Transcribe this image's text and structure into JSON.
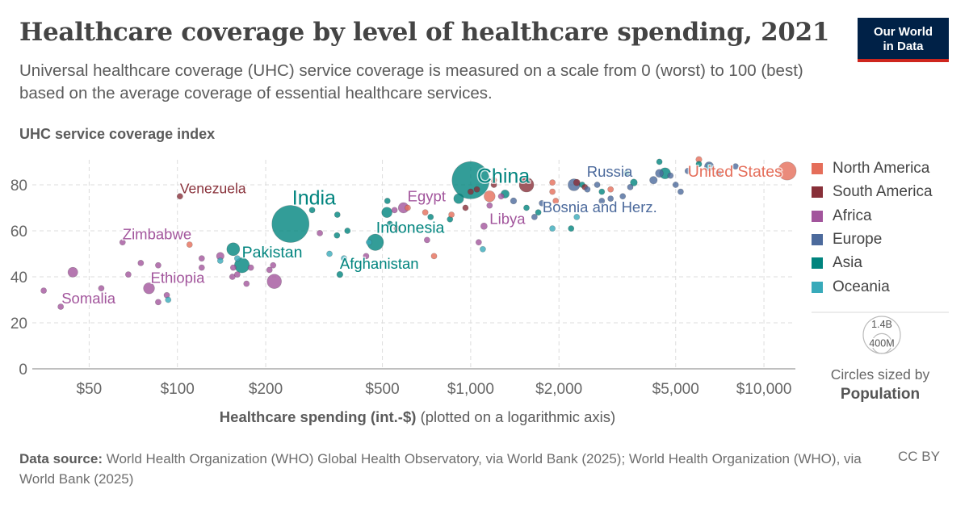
{
  "header": {
    "title": "Healthcare coverage by level of healthcare spending, 2021",
    "subtitle": "Universal healthcare coverage (UHC) service coverage is measured on a scale from 0 (worst) to 100 (best) based on the average coverage of essential healthcare services.",
    "logo_line1": "Our World",
    "logo_line2": "in Data"
  },
  "footer": {
    "source_label": "Data source:",
    "source_text": "World Health Organization (WHO) Global Health Observatory, via World Bank (2025); World Health Organization (WHO), via World Bank (2025)",
    "license": "CC BY"
  },
  "colors": {
    "North America": "#E56E5A",
    "South America": "#883039",
    "Africa": "#A2559C",
    "Europe": "#4C6A9C",
    "Asia": "#00847E",
    "Oceania": "#38AABA"
  },
  "chart_data": {
    "type": "scatter",
    "title": "Healthcare coverage by level of healthcare spending, 2021",
    "ylabel": "UHC service coverage index",
    "xlabel": "Healthcare spending (int.-$)",
    "xlabel_note": "(plotted on a logarithmic axis)",
    "x_scale": "log",
    "xlim": [
      32,
      12800
    ],
    "ylim": [
      0,
      90
    ],
    "grid": true,
    "x_ticks": [
      50,
      100,
      200,
      500,
      1000,
      2000,
      5000,
      10000
    ],
    "x_tick_labels": [
      "$50",
      "$100",
      "$200",
      "$500",
      "$1,000",
      "$2,000",
      "$5,000",
      "$10,000"
    ],
    "y_ticks": [
      0,
      20,
      40,
      60,
      80
    ],
    "y_tick_labels": [
      "0",
      "20",
      "40",
      "60",
      "80"
    ],
    "legend_position": "right",
    "legend": [
      "North America",
      "South America",
      "Africa",
      "Europe",
      "Asia",
      "Oceania"
    ],
    "size_legend": {
      "title": "Circles sized by",
      "variable": "Population",
      "values": [
        "1.4B",
        "400M"
      ]
    },
    "points": [
      {
        "x": 35,
        "y": 34,
        "region": "Africa",
        "pop": 20
      },
      {
        "x": 40,
        "y": 27,
        "region": "Africa",
        "pop": 18,
        "label": "Somalia"
      },
      {
        "x": 44,
        "y": 42,
        "region": "Africa",
        "pop": 100
      },
      {
        "x": 55,
        "y": 35,
        "region": "Africa",
        "pop": 12
      },
      {
        "x": 65,
        "y": 55,
        "region": "Africa",
        "pop": 16,
        "label": "Zimbabwe"
      },
      {
        "x": 68,
        "y": 41,
        "region": "Africa",
        "pop": 20
      },
      {
        "x": 75,
        "y": 46,
        "region": "Africa",
        "pop": 20
      },
      {
        "x": 86,
        "y": 45,
        "region": "Africa",
        "pop": 20
      },
      {
        "x": 80,
        "y": 35,
        "region": "Africa",
        "pop": 125,
        "label": "Ethiopia"
      },
      {
        "x": 86,
        "y": 29,
        "region": "Africa",
        "pop": 15
      },
      {
        "x": 92,
        "y": 32,
        "region": "Africa",
        "pop": 15
      },
      {
        "x": 121,
        "y": 44,
        "region": "Africa",
        "pop": 20
      },
      {
        "x": 121,
        "y": 48,
        "region": "Africa",
        "pop": 30
      },
      {
        "x": 140,
        "y": 49,
        "region": "Africa",
        "pop": 60
      },
      {
        "x": 154,
        "y": 40,
        "region": "Africa",
        "pop": 20
      },
      {
        "x": 160,
        "y": 41,
        "region": "Africa",
        "pop": 20
      },
      {
        "x": 155,
        "y": 44,
        "region": "Africa",
        "pop": 25
      },
      {
        "x": 172,
        "y": 37,
        "region": "Africa",
        "pop": 18
      },
      {
        "x": 178,
        "y": 44,
        "region": "Africa",
        "pop": 20
      },
      {
        "x": 214,
        "y": 38,
        "region": "Africa",
        "pop": 210
      },
      {
        "x": 206,
        "y": 43,
        "region": "Africa",
        "pop": 20
      },
      {
        "x": 212,
        "y": 45,
        "region": "Africa",
        "pop": 20
      },
      {
        "x": 306,
        "y": 59,
        "region": "Africa",
        "pop": 20
      },
      {
        "x": 590,
        "y": 70,
        "region": "Africa",
        "pop": 110,
        "label": "Egypt"
      },
      {
        "x": 550,
        "y": 69,
        "region": "Africa",
        "pop": 20
      },
      {
        "x": 1160,
        "y": 71,
        "region": "Africa",
        "pop": 7,
        "label": "Libya"
      },
      {
        "x": 1270,
        "y": 75,
        "region": "Africa",
        "pop": 30
      },
      {
        "x": 710,
        "y": 56,
        "region": "Africa",
        "pop": 20
      },
      {
        "x": 1065,
        "y": 55,
        "region": "Africa",
        "pop": 20
      },
      {
        "x": 1110,
        "y": 62,
        "region": "Africa",
        "pop": 45
      },
      {
        "x": 440,
        "y": 49,
        "region": "Africa",
        "pop": 20
      },
      {
        "x": 243,
        "y": 63,
        "region": "Asia",
        "pop": 1400,
        "label": "India"
      },
      {
        "x": 1000,
        "y": 82,
        "region": "Asia",
        "pop": 1410,
        "label": "China"
      },
      {
        "x": 166,
        "y": 45,
        "region": "Asia",
        "pop": 230,
        "label": "Pakistan"
      },
      {
        "x": 155,
        "y": 52,
        "region": "Asia",
        "pop": 170
      },
      {
        "x": 358,
        "y": 41,
        "region": "Asia",
        "pop": 40,
        "label": "Afghanistan"
      },
      {
        "x": 473,
        "y": 55,
        "region": "Asia",
        "pop": 275,
        "label": "Indonesia"
      },
      {
        "x": 288,
        "y": 69,
        "region": "Asia",
        "pop": 20
      },
      {
        "x": 351,
        "y": 67,
        "region": "Asia",
        "pop": 20
      },
      {
        "x": 350,
        "y": 58,
        "region": "Asia",
        "pop": 20
      },
      {
        "x": 380,
        "y": 60,
        "region": "Asia",
        "pop": 30
      },
      {
        "x": 530,
        "y": 63,
        "region": "Asia",
        "pop": 30
      },
      {
        "x": 518,
        "y": 68,
        "region": "Asia",
        "pop": 110
      },
      {
        "x": 520,
        "y": 73,
        "region": "Asia",
        "pop": 20
      },
      {
        "x": 730,
        "y": 66,
        "region": "Asia",
        "pop": 30
      },
      {
        "x": 910,
        "y": 74,
        "region": "Asia",
        "pop": 100
      },
      {
        "x": 850,
        "y": 65,
        "region": "Asia",
        "pop": 20
      },
      {
        "x": 1310,
        "y": 76,
        "region": "Asia",
        "pop": 70
      },
      {
        "x": 1550,
        "y": 70,
        "region": "Asia",
        "pop": 20
      },
      {
        "x": 1700,
        "y": 68,
        "region": "Asia",
        "pop": 20
      },
      {
        "x": 2200,
        "y": 61,
        "region": "Asia",
        "pop": 20
      },
      {
        "x": 2800,
        "y": 77,
        "region": "Asia",
        "pop": 20
      },
      {
        "x": 3400,
        "y": 85,
        "region": "Asia",
        "pop": 20
      },
      {
        "x": 4400,
        "y": 90,
        "region": "Asia",
        "pop": 20
      },
      {
        "x": 4600,
        "y": 85,
        "region": "Asia",
        "pop": 125
      },
      {
        "x": 3600,
        "y": 81,
        "region": "Asia",
        "pop": 50
      },
      {
        "x": 2400,
        "y": 80,
        "region": "Asia",
        "pop": 20
      },
      {
        "x": 6000,
        "y": 89,
        "region": "Asia",
        "pop": 10
      },
      {
        "x": 2250,
        "y": 80,
        "region": "Europe",
        "pop": 145,
        "label": "Russia"
      },
      {
        "x": 1650,
        "y": 66,
        "region": "Europe",
        "pop": 3,
        "label": "Bosnia and Herz."
      },
      {
        "x": 1750,
        "y": 72,
        "region": "Europe",
        "pop": 10
      },
      {
        "x": 2500,
        "y": 78,
        "region": "Europe",
        "pop": 10
      },
      {
        "x": 2700,
        "y": 80,
        "region": "Europe",
        "pop": 10
      },
      {
        "x": 3000,
        "y": 74,
        "region": "Europe",
        "pop": 10
      },
      {
        "x": 3300,
        "y": 75,
        "region": "Europe",
        "pop": 10
      },
      {
        "x": 3500,
        "y": 79,
        "region": "Europe",
        "pop": 10
      },
      {
        "x": 4200,
        "y": 82,
        "region": "Europe",
        "pop": 60
      },
      {
        "x": 4400,
        "y": 85,
        "region": "Europe",
        "pop": 65
      },
      {
        "x": 5000,
        "y": 80,
        "region": "Europe",
        "pop": 10
      },
      {
        "x": 5200,
        "y": 77,
        "region": "Europe",
        "pop": 10
      },
      {
        "x": 5500,
        "y": 86,
        "region": "Europe",
        "pop": 10
      },
      {
        "x": 6500,
        "y": 88,
        "region": "Europe",
        "pop": 85
      },
      {
        "x": 7000,
        "y": 85,
        "region": "Europe",
        "pop": 10
      },
      {
        "x": 8000,
        "y": 88,
        "region": "Europe",
        "pop": 10
      },
      {
        "x": 4800,
        "y": 84,
        "region": "Europe",
        "pop": 10
      },
      {
        "x": 1400,
        "y": 73,
        "region": "Europe",
        "pop": 40
      },
      {
        "x": 2800,
        "y": 73,
        "region": "Europe",
        "pop": 10
      },
      {
        "x": 12000,
        "y": 86,
        "region": "North America",
        "pop": 335,
        "label": "United States"
      },
      {
        "x": 6000,
        "y": 91,
        "region": "North America",
        "pop": 38
      },
      {
        "x": 1160,
        "y": 75,
        "region": "North America",
        "pop": 125
      },
      {
        "x": 610,
        "y": 70,
        "region": "North America",
        "pop": 10
      },
      {
        "x": 700,
        "y": 68,
        "region": "North America",
        "pop": 10
      },
      {
        "x": 1900,
        "y": 81,
        "region": "North America",
        "pop": 10
      },
      {
        "x": 1900,
        "y": 77,
        "region": "North America",
        "pop": 10
      },
      {
        "x": 1950,
        "y": 73,
        "region": "North America",
        "pop": 10
      },
      {
        "x": 3000,
        "y": 78,
        "region": "North America",
        "pop": 10
      },
      {
        "x": 750,
        "y": 49,
        "region": "North America",
        "pop": 10
      },
      {
        "x": 1200,
        "y": 82,
        "region": "North America",
        "pop": 10
      },
      {
        "x": 110,
        "y": 54,
        "region": "North America",
        "pop": 10
      },
      {
        "x": 860,
        "y": 67,
        "region": "North America",
        "pop": 10
      },
      {
        "x": 102,
        "y": 75,
        "region": "South America",
        "pop": 28,
        "label": "Venezuela"
      },
      {
        "x": 1550,
        "y": 80,
        "region": "South America",
        "pop": 215
      },
      {
        "x": 1000,
        "y": 77,
        "region": "South America",
        "pop": 20
      },
      {
        "x": 1050,
        "y": 78,
        "region": "South America",
        "pop": 20
      },
      {
        "x": 1200,
        "y": 80,
        "region": "South America",
        "pop": 10
      },
      {
        "x": 2300,
        "y": 81,
        "region": "South America",
        "pop": 45
      },
      {
        "x": 560,
        "y": 61,
        "region": "South America",
        "pop": 10
      },
      {
        "x": 960,
        "y": 70,
        "region": "South America",
        "pop": 10
      },
      {
        "x": 2450,
        "y": 79,
        "region": "South America",
        "pop": 20
      },
      {
        "x": 93,
        "y": 30,
        "region": "Oceania",
        "pop": 10
      },
      {
        "x": 140,
        "y": 47,
        "region": "Oceania",
        "pop": 10
      },
      {
        "x": 160,
        "y": 48,
        "region": "Oceania",
        "pop": 10
      },
      {
        "x": 330,
        "y": 50,
        "region": "Oceania",
        "pop": 5
      },
      {
        "x": 450,
        "y": 55,
        "region": "Oceania",
        "pop": 5
      },
      {
        "x": 1100,
        "y": 52,
        "region": "Oceania",
        "pop": 5
      },
      {
        "x": 1900,
        "y": 61,
        "region": "Oceania",
        "pop": 5
      },
      {
        "x": 2300,
        "y": 66,
        "region": "Oceania",
        "pop": 5
      },
      {
        "x": 6500,
        "y": 88,
        "region": "Oceania",
        "pop": 26
      },
      {
        "x": 370,
        "y": 48,
        "region": "Oceania",
        "pop": 5
      }
    ]
  }
}
